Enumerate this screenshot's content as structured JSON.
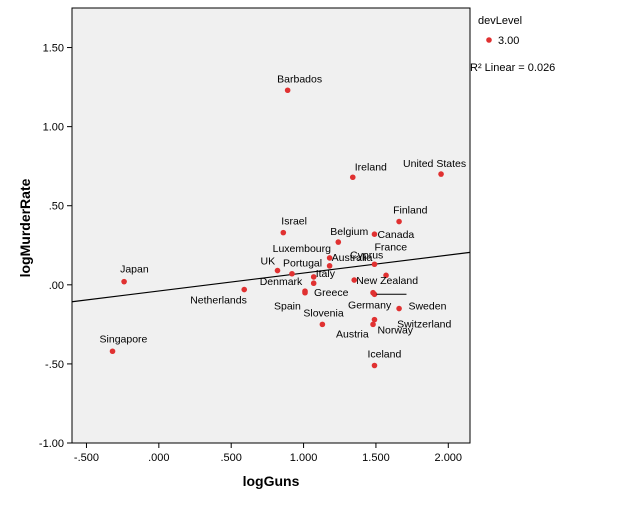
{
  "chart_data": {
    "type": "scatter",
    "xlabel": "logGuns",
    "ylabel": "logMurderRate",
    "xlim": [
      -0.6,
      2.15
    ],
    "ylim": [
      -1.0,
      1.75
    ],
    "x_ticks": [
      -0.5,
      0.0,
      0.5,
      1.0,
      1.5,
      2.0
    ],
    "x_tick_labels": [
      "-.500",
      ".000",
      ".500",
      "1.000",
      "1.500",
      "2.000"
    ],
    "y_ticks": [
      -1.0,
      -0.5,
      0.0,
      0.5,
      1.0,
      1.5
    ],
    "y_tick_labels": [
      "-1.00",
      "-.50",
      ".00",
      ".50",
      "1.00",
      "1.50"
    ],
    "grid": false,
    "legend": {
      "title": "devLevel",
      "position": "top-right",
      "entries": [
        {
          "label": "3.00",
          "color": "#e03131"
        }
      ],
      "fit_label": "R² Linear = 0.026"
    },
    "fit_line": {
      "x": [
        -0.6,
        2.15
      ],
      "y": [
        -0.107,
        0.205
      ]
    },
    "colors": {
      "background": "#f0f0f0",
      "point": "#e03131",
      "line": "#000000"
    },
    "points": [
      {
        "label": "Barbados",
        "x": 0.89,
        "y": 1.23
      },
      {
        "label": "Ireland",
        "x": 1.34,
        "y": 0.68
      },
      {
        "label": "United States",
        "x": 1.95,
        "y": 0.7
      },
      {
        "label": "Finland",
        "x": 1.66,
        "y": 0.4
      },
      {
        "label": "Israel",
        "x": 0.86,
        "y": 0.33
      },
      {
        "label": "Canada",
        "x": 1.49,
        "y": 0.32
      },
      {
        "label": "Belgium",
        "x": 1.24,
        "y": 0.27
      },
      {
        "label": "Luxembourg",
        "x": 1.18,
        "y": 0.17
      },
      {
        "label": "Australia",
        "x": 1.18,
        "y": 0.12
      },
      {
        "label": "France",
        "x": 1.49,
        "y": 0.13
      },
      {
        "label": "Cyprus",
        "x": 1.57,
        "y": 0.06
      },
      {
        "label": "UK",
        "x": 0.82,
        "y": 0.09
      },
      {
        "label": "Portugal",
        "x": 0.92,
        "y": 0.07
      },
      {
        "label": "Italy",
        "x": 1.07,
        "y": 0.05
      },
      {
        "label": "Denmark",
        "x": 1.07,
        "y": 0.01
      },
      {
        "label": "New Zealand",
        "x": 1.35,
        "y": 0.03
      },
      {
        "label": "Greece",
        "x": 1.01,
        "y": -0.04
      },
      {
        "label": "Netherlands",
        "x": 0.59,
        "y": -0.03
      },
      {
        "label": "Spain",
        "x": 1.01,
        "y": -0.05
      },
      {
        "label": "Germany",
        "x": 1.48,
        "y": -0.05
      },
      {
        "label": "Sweden",
        "x": 1.49,
        "y": -0.06
      },
      {
        "label": "Switzerland",
        "x": 1.66,
        "y": -0.15
      },
      {
        "label": "Norway",
        "x": 1.49,
        "y": -0.22
      },
      {
        "label": "Austria",
        "x": 1.48,
        "y": -0.25
      },
      {
        "label": "Slovenia",
        "x": 1.13,
        "y": -0.25
      },
      {
        "label": "Japan",
        "x": -0.24,
        "y": 0.02
      },
      {
        "label": "Singapore",
        "x": -0.32,
        "y": -0.42
      },
      {
        "label": "Iceland",
        "x": 1.49,
        "y": -0.51
      }
    ]
  }
}
